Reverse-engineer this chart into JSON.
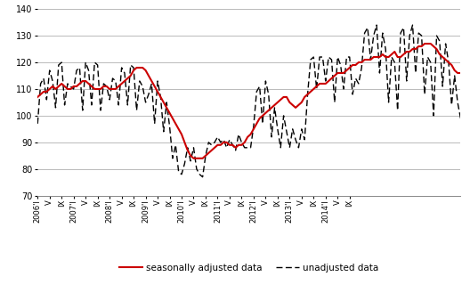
{
  "title": "",
  "ylim": [
    70,
    140
  ],
  "yticks": [
    70,
    80,
    90,
    100,
    110,
    120,
    130,
    140
  ],
  "seasonally_adjusted": [
    107,
    108,
    109,
    109,
    110,
    111,
    110,
    111,
    112,
    111,
    110,
    110,
    111,
    111,
    112,
    113,
    113,
    112,
    111,
    110,
    110,
    110,
    111,
    111,
    110,
    110,
    110,
    111,
    112,
    113,
    114,
    115,
    117,
    118,
    118,
    118,
    117,
    115,
    113,
    111,
    109,
    107,
    105,
    103,
    101,
    99,
    97,
    95,
    93,
    90,
    87,
    85,
    84,
    84,
    84,
    84,
    85,
    86,
    87,
    88,
    89,
    89,
    90,
    90,
    89,
    89,
    88,
    89,
    89,
    90,
    92,
    93,
    95,
    97,
    99,
    100,
    101,
    102,
    103,
    104,
    105,
    106,
    107,
    107,
    105,
    104,
    103,
    104,
    105,
    107,
    108,
    109,
    110,
    111,
    112,
    112,
    112,
    113,
    114,
    115,
    116,
    116,
    116,
    117,
    118,
    119,
    119,
    120,
    120,
    121,
    121,
    121,
    122,
    122,
    122,
    123,
    122,
    122,
    123,
    124,
    122,
    122,
    123,
    124,
    124,
    125,
    125,
    126,
    126,
    127,
    127,
    127,
    126,
    125,
    123,
    122,
    121,
    120,
    119,
    117,
    116,
    116
  ],
  "unadjusted": [
    97,
    112,
    114,
    106,
    117,
    113,
    103,
    119,
    120,
    104,
    112,
    111,
    110,
    117,
    118,
    102,
    120,
    117,
    104,
    120,
    119,
    102,
    112,
    111,
    106,
    114,
    113,
    104,
    118,
    116,
    104,
    119,
    118,
    102,
    113,
    111,
    105,
    108,
    112,
    97,
    113,
    107,
    94,
    105,
    96,
    84,
    89,
    79,
    78,
    82,
    88,
    83,
    88,
    80,
    78,
    77,
    85,
    90,
    89,
    90,
    92,
    90,
    91,
    88,
    91,
    89,
    87,
    93,
    90,
    88,
    88,
    88,
    96,
    109,
    111,
    97,
    113,
    108,
    92,
    103,
    95,
    88,
    100,
    94,
    88,
    95,
    91,
    88,
    95,
    91,
    108,
    121,
    122,
    110,
    122,
    122,
    113,
    122,
    121,
    105,
    122,
    119,
    110,
    122,
    122,
    108,
    114,
    112,
    118,
    131,
    133,
    121,
    130,
    134,
    116,
    131,
    125,
    105,
    122,
    120,
    102,
    131,
    133,
    113,
    130,
    134,
    116,
    131,
    130,
    108,
    122,
    120,
    100,
    130,
    128,
    111,
    127,
    120,
    104,
    115,
    105,
    99
  ],
  "n_months": 142,
  "x_tick_positions": [
    0,
    4,
    8,
    12,
    16,
    20,
    24,
    28,
    32,
    36,
    40,
    44,
    48,
    52,
    56,
    60,
    64,
    68,
    72,
    76,
    80,
    84,
    88,
    92,
    96,
    100,
    104
  ],
  "x_tick_labels": [
    "2006'I",
    "V",
    "IX",
    "2007'I",
    "V",
    "IX",
    "2008'I",
    "V",
    "IX",
    "2009'I",
    "V",
    "IX",
    "2010'I",
    "V",
    "IX",
    "2011'I",
    "V",
    "IX",
    "2012'I",
    "V",
    "IX",
    "2013'I",
    "V",
    "IX",
    "2014'I",
    "V",
    "IX"
  ],
  "sa_color": "#cc0000",
  "unadj_color": "#000000",
  "legend_sa": "seasonally adjusted data",
  "legend_unadj": "unadjusted data",
  "bg_color": "#ffffff",
  "grid_color": "#b0b0b0"
}
